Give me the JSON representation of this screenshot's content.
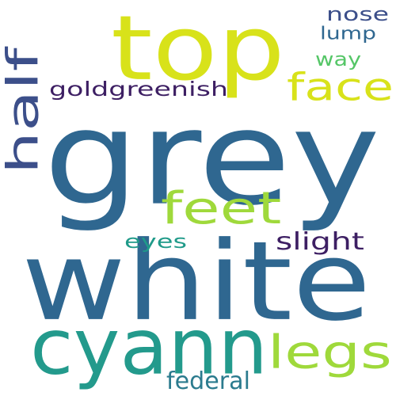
{
  "words": [
    {
      "text": "grey",
      "color": "#2f6790"
    },
    {
      "text": "white",
      "color": "#2f6790"
    },
    {
      "text": "top",
      "color": "#d8e21a"
    },
    {
      "text": "cyann",
      "color": "#239a8c"
    },
    {
      "text": "legs",
      "color": "#9fd93b"
    },
    {
      "text": "feet",
      "color": "#9fd93b"
    },
    {
      "text": "face",
      "color": "#d8e21a"
    },
    {
      "text": "half",
      "color": "#3c4f8a"
    },
    {
      "text": "goldgreenish",
      "color": "#3d1f63"
    },
    {
      "text": "federal",
      "color": "#2b7b8e"
    },
    {
      "text": "slight",
      "color": "#3d1f63"
    },
    {
      "text": "eyes",
      "color": "#1f9a89"
    },
    {
      "text": "nose",
      "color": "#3c4f8a"
    },
    {
      "text": "lump",
      "color": "#2f6790"
    },
    {
      "text": "way",
      "color": "#55c667"
    }
  ]
}
